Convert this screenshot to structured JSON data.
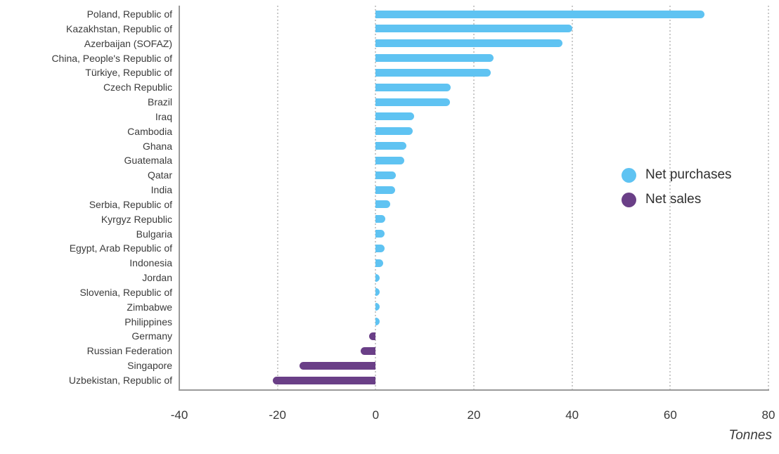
{
  "chart_data": {
    "type": "bar",
    "orientation": "horizontal",
    "title": "",
    "xlabel": "Tonnes",
    "ylabel": "",
    "xlim": [
      -40,
      80
    ],
    "x_ticks": [
      -40,
      -20,
      0,
      20,
      40,
      60,
      80
    ],
    "grid": "vertical-dotted",
    "legend_position": "center-right",
    "categories": [
      "Poland, Republic of",
      "Kazakhstan, Republic of",
      "Azerbaijan (SOFAZ)",
      "China, People's Republic of",
      "Türkiye, Republic of",
      "Czech Republic",
      "Brazil",
      "Iraq",
      "Cambodia",
      "Ghana",
      "Guatemala",
      "Qatar",
      "India",
      "Serbia, Republic of",
      "Kyrgyz Republic",
      "Bulgaria",
      "Egypt, Arab Republic of",
      "Indonesia",
      "Jordan",
      "Slovenia, Republic of",
      "Zimbabwe",
      "Philippines",
      "Germany",
      "Russian Federation",
      "Singapore",
      "Uzbekistan, Republic of"
    ],
    "values": [
      67,
      40,
      38,
      24,
      23.5,
      15.3,
      15.2,
      7.9,
      7.5,
      6.2,
      5.8,
      4.1,
      3.9,
      2.9,
      1.9,
      1.8,
      1.8,
      1.5,
      0.6,
      0.5,
      0.5,
      0.5,
      -1.3,
      -3.1,
      -15.5,
      -21
    ],
    "legend": [
      {
        "label": "Net purchases",
        "color": "#5fc3f2"
      },
      {
        "label": "Net sales",
        "color": "#6a3f87"
      }
    ],
    "colors": {
      "positive": "#5fc3f2",
      "negative": "#6a3f87",
      "axis_line": "#9a9a9a",
      "gridline": "#c9c9c9",
      "text": "#3b3b3b"
    }
  }
}
